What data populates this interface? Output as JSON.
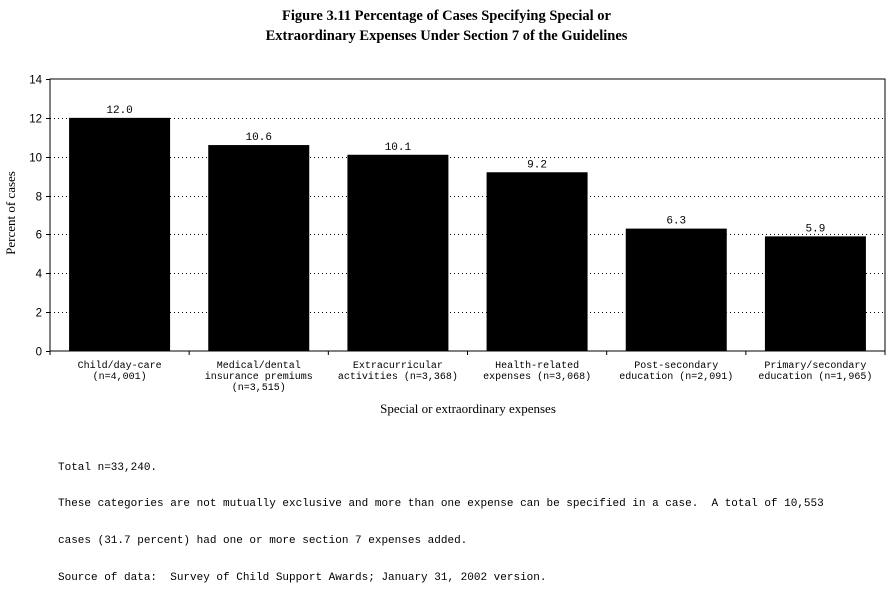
{
  "chart_data": {
    "type": "bar",
    "title": "Figure 3.11  Percentage of Cases Specifying Special or",
    "subtitle": "Extraordinary Expenses Under Section 7 of the Guidelines",
    "xlabel": "Special or extraordinary expenses",
    "ylabel": "Percent of cases",
    "ylim": [
      0,
      14
    ],
    "yticks": [
      "0",
      "2",
      "4",
      "6",
      "8",
      "10",
      "12",
      "14"
    ],
    "grid": "horizontal dotted",
    "bar_color": "#000000",
    "categories": [
      [
        "Child/day-care",
        "(n=4,001)"
      ],
      [
        "Medical/dental",
        "insurance premiums",
        "(n=3,515)"
      ],
      [
        "Extracurricular",
        "activities (n=3,368)"
      ],
      [
        "Health-related",
        "expenses (n=3,068)"
      ],
      [
        "Post-secondary",
        "education (n=2,091)"
      ],
      [
        "Primary/secondary",
        "education (n=1,965)"
      ]
    ],
    "values": [
      12.0,
      10.6,
      10.1,
      9.2,
      6.3,
      5.9
    ],
    "value_labels": [
      "12.0",
      "10.6",
      "10.1",
      "9.2",
      "6.3",
      "5.9"
    ]
  },
  "notes": [
    "Total n=33,240.",
    "These categories are not mutually exclusive and more than one expense can be specified in a case.  A total of 10,553",
    "cases (31.7 percent) had one or more section 7 expenses added.",
    "Source of data:  Survey of Child Support Awards; January 31, 2002 version."
  ]
}
